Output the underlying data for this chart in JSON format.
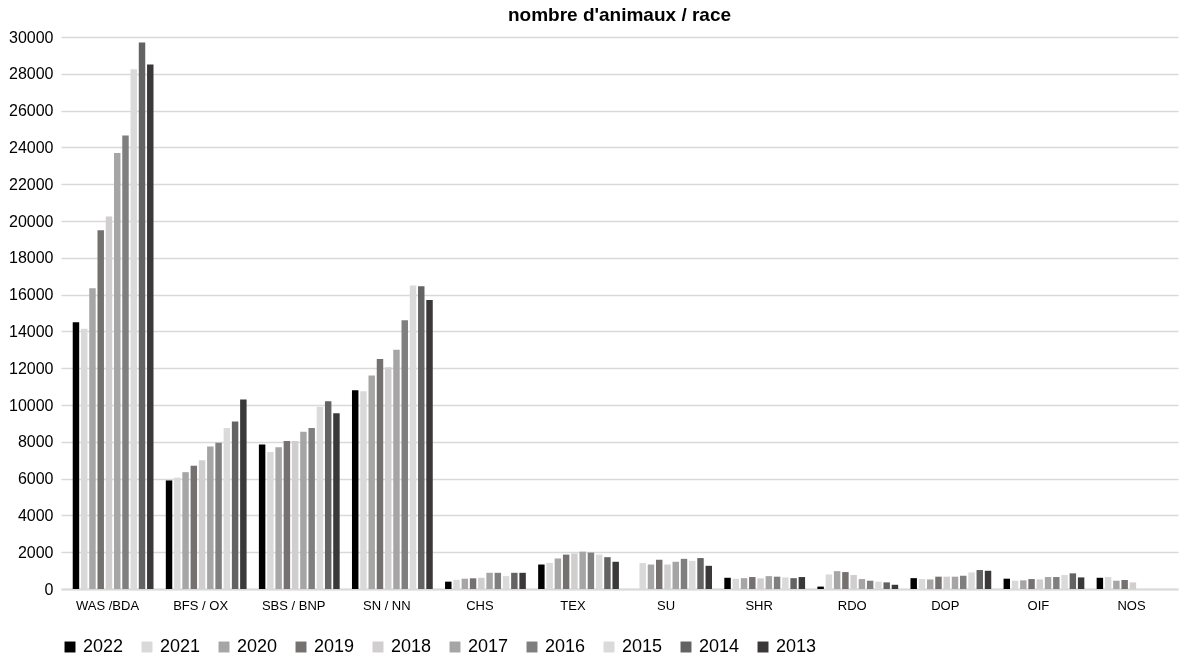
{
  "chart_data": {
    "type": "bar",
    "title": "nombre d'animaux / race",
    "categories": [
      "WAS /BDA",
      "BFS / OX",
      "SBS / BNP",
      "SN / NN",
      "CHS",
      "TEX",
      "SU",
      "SHR",
      "RDO",
      "DOP",
      "OIF",
      "NOS"
    ],
    "series": [
      {
        "name": "2022",
        "color": "#000000",
        "values": [
          14500,
          5900,
          7850,
          10800,
          400,
          1330,
          null,
          610,
          130,
          590,
          560,
          610
        ]
      },
      {
        "name": "2021",
        "color": "#d9d9d9",
        "values": [
          14150,
          6050,
          7450,
          10750,
          500,
          1420,
          1410,
          560,
          790,
          540,
          450,
          650
        ]
      },
      {
        "name": "2020",
        "color": "#a6a6a6",
        "values": [
          16350,
          6350,
          7700,
          11600,
          560,
          1660,
          1330,
          590,
          970,
          520,
          470,
          450
        ]
      },
      {
        "name": "2019",
        "color": "#767171",
        "values": [
          19500,
          6700,
          8050,
          12500,
          580,
          1870,
          1590,
          650,
          920,
          670,
          540,
          490
        ]
      },
      {
        "name": "2018",
        "color": "#d0cece",
        "values": [
          20250,
          7000,
          8050,
          12050,
          610,
          1930,
          1330,
          580,
          760,
          670,
          520,
          360
        ]
      },
      {
        "name": "2017",
        "color": "#a5a5a5",
        "values": [
          23700,
          7750,
          8550,
          13000,
          880,
          2030,
          1480,
          700,
          540,
          670,
          650,
          null
        ]
      },
      {
        "name": "2016",
        "color": "#7f7f7f",
        "values": [
          24650,
          7950,
          8750,
          14600,
          880,
          1980,
          1640,
          670,
          450,
          720,
          650,
          null
        ]
      },
      {
        "name": "2015",
        "color": "#dadada",
        "values": [
          28250,
          8750,
          9900,
          16500,
          700,
          1870,
          1530,
          630,
          400,
          900,
          760,
          null
        ]
      },
      {
        "name": "2014",
        "color": "#636363",
        "values": [
          29700,
          9100,
          10200,
          16450,
          880,
          1730,
          1680,
          590,
          360,
          1030,
          850,
          null
        ]
      },
      {
        "name": "2013",
        "color": "#3a3838",
        "values": [
          28500,
          10300,
          9550,
          15700,
          880,
          1480,
          1260,
          650,
          230,
          990,
          630,
          null
        ]
      }
    ],
    "ylim": [
      0,
      30000
    ],
    "yticks": [
      0,
      2000,
      4000,
      6000,
      8000,
      10000,
      12000,
      14000,
      16000,
      18000,
      20000,
      22000,
      24000,
      26000,
      28000,
      30000
    ],
    "grid": "y",
    "legend": "bottom"
  }
}
